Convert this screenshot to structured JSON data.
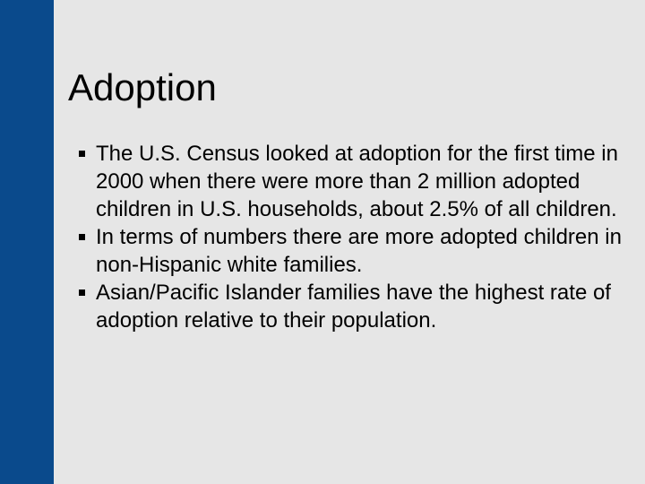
{
  "slide": {
    "title": "Adoption",
    "bullets": [
      "The U.S. Census looked at adoption for the first time in 2000 when there were more than 2 million adopted children in U.S. households, about 2.5% of all children.",
      "In terms of numbers there are more adopted children in non-Hispanic white families.",
      "Asian/Pacific Islander families have the highest rate of adoption relative to their population."
    ]
  },
  "colors": {
    "background": "#e6e6e6",
    "accent_bar": "#0a4a8c",
    "text": "#000000"
  }
}
